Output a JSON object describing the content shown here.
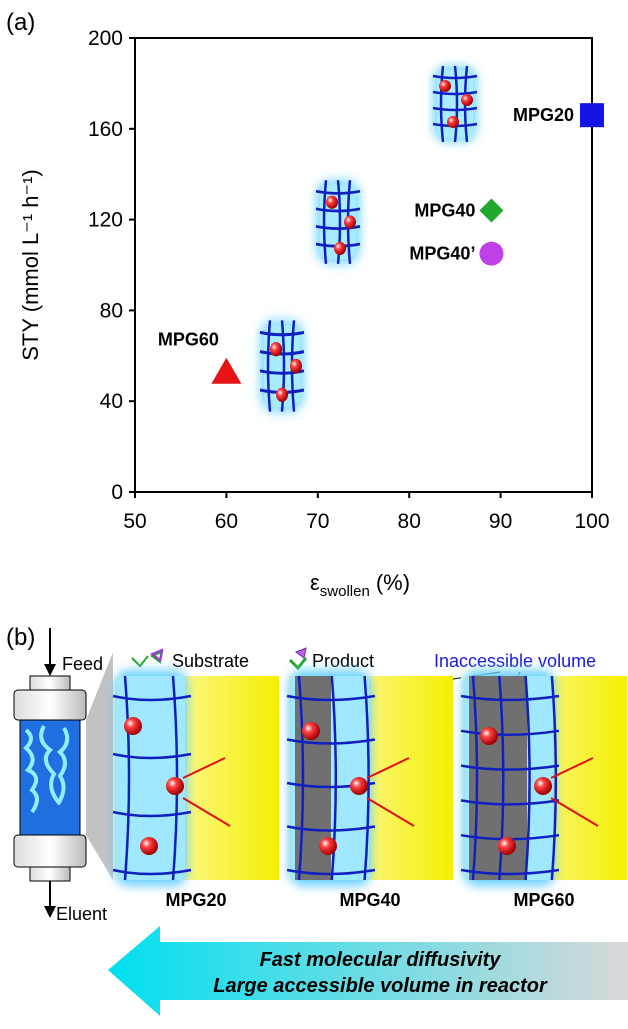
{
  "chart_data": {
    "type": "scatter",
    "panel_label": "(a)",
    "x_label": {
      "symbol": "ε",
      "subscript": "swollen",
      "unit": "(%)"
    },
    "y_label": "STY (mmol L⁻¹ h⁻¹)",
    "xlim": [
      50,
      100
    ],
    "xticks": [
      50,
      60,
      70,
      80,
      90,
      100
    ],
    "ylim": [
      0,
      200
    ],
    "yticks": [
      0,
      40,
      80,
      120,
      160,
      200
    ],
    "grid": false,
    "series": [
      {
        "name": "MPG20",
        "color": "#1414e6",
        "marker": "square",
        "x": [
          100
        ],
        "values": [
          166
        ]
      },
      {
        "name": "MPG40",
        "color": "#22a82a",
        "marker": "diamond",
        "x": [
          89
        ],
        "values": [
          124
        ]
      },
      {
        "name": "MPG40’",
        "color": "#c040e8",
        "marker": "circle",
        "x": [
          89
        ],
        "values": [
          105
        ]
      },
      {
        "name": "MPG60",
        "color": "#e61414",
        "marker": "triangle",
        "x": [
          60
        ],
        "values": [
          53
        ]
      }
    ]
  },
  "diagram": {
    "panel_label": "(b)",
    "feed": "Feed",
    "eluent": "Eluent",
    "substrate": "Substrate",
    "product": "Product",
    "inaccessible": "Inaccessible volume",
    "panels": [
      "MPG20",
      "MPG40",
      "MPG60"
    ],
    "arrow_lines": [
      "Fast molecular diffusivity",
      "Large accessible volume in reactor"
    ]
  }
}
